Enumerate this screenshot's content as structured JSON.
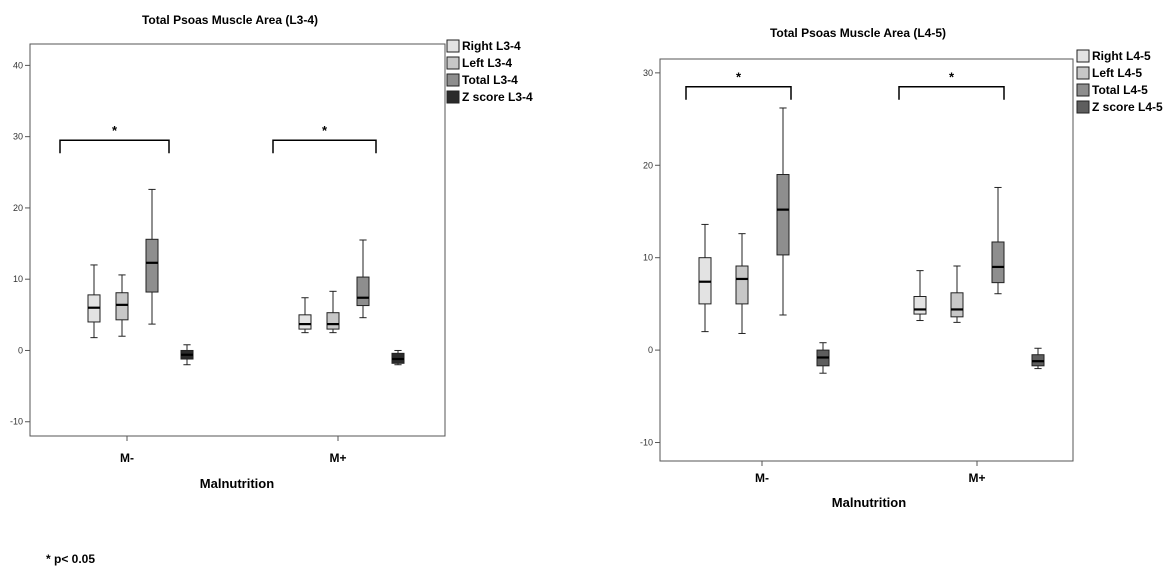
{
  "chart_data": [
    {
      "type": "box",
      "title": "Total Psoas Muscle Area (L3-4)",
      "xlabel": "Malnutrition",
      "ylabel": "",
      "categories": [
        "M-",
        "M+"
      ],
      "ylim": [
        -12,
        43
      ],
      "yticks": [
        "-10",
        "0",
        "10",
        "20",
        "30",
        "40"
      ],
      "legend_position": "right",
      "series": [
        {
          "name": "Right L3-4",
          "color": "#e3e3e3",
          "boxes": [
            {
              "min": 1.8,
              "q1": 4.0,
              "median": 6.0,
              "q3": 7.8,
              "max": 12.0
            },
            {
              "min": 2.5,
              "q1": 3.0,
              "median": 3.7,
              "q3": 5.0,
              "max": 7.4
            }
          ]
        },
        {
          "name": "Left L3-4",
          "color": "#c7c7c7",
          "boxes": [
            {
              "min": 2.0,
              "q1": 4.3,
              "median": 6.4,
              "q3": 8.1,
              "max": 10.6
            },
            {
              "min": 2.5,
              "q1": 3.0,
              "median": 3.7,
              "q3": 5.3,
              "max": 8.3
            }
          ]
        },
        {
          "name": "Total L3-4",
          "color": "#8e8e8e",
          "boxes": [
            {
              "min": 3.7,
              "q1": 8.2,
              "median": 12.3,
              "q3": 15.6,
              "max": 22.6
            },
            {
              "min": 4.6,
              "q1": 6.3,
              "median": 7.4,
              "q3": 10.3,
              "max": 15.5
            }
          ]
        },
        {
          "name": "Z score L3-4",
          "color": "#2b2b2b",
          "boxes": [
            {
              "min": -2.0,
              "q1": -1.2,
              "median": -0.6,
              "q3": 0.0,
              "max": 0.8
            },
            {
              "min": -2.0,
              "q1": -1.8,
              "median": -1.2,
              "q3": -0.4,
              "max": 0.0
            }
          ]
        }
      ],
      "significance": [
        {
          "category": "M-",
          "label": "*",
          "y": 29.5
        },
        {
          "category": "M+",
          "label": "*",
          "y": 29.5
        }
      ]
    },
    {
      "type": "box",
      "title": "Total Psoas Muscle Area (L4-5)",
      "xlabel": "Malnutrition",
      "ylabel": "",
      "categories": [
        "M-",
        "M+"
      ],
      "ylim": [
        -12,
        31.5
      ],
      "yticks": [
        "-10",
        "0",
        "10",
        "20",
        "30"
      ],
      "legend_position": "right",
      "series": [
        {
          "name": "Right L4-5",
          "color": "#e3e3e3",
          "boxes": [
            {
              "min": 2.0,
              "q1": 5.0,
              "median": 7.4,
              "q3": 10.0,
              "max": 13.6
            },
            {
              "min": 3.2,
              "q1": 3.9,
              "median": 4.4,
              "q3": 5.8,
              "max": 8.6
            }
          ]
        },
        {
          "name": "Left L4-5",
          "color": "#c7c7c7",
          "boxes": [
            {
              "min": 1.8,
              "q1": 5.0,
              "median": 7.7,
              "q3": 9.1,
              "max": 12.6
            },
            {
              "min": 3.0,
              "q1": 3.6,
              "median": 4.4,
              "q3": 6.2,
              "max": 9.1
            }
          ]
        },
        {
          "name": "Total L4-5",
          "color": "#8e8e8e",
          "boxes": [
            {
              "min": 3.8,
              "q1": 10.3,
              "median": 15.2,
              "q3": 19.0,
              "max": 26.2
            },
            {
              "min": 6.1,
              "q1": 7.3,
              "median": 9.0,
              "q3": 11.7,
              "max": 17.6
            }
          ]
        },
        {
          "name": "Z score L4-5",
          "color": "#5e5e5e",
          "boxes": [
            {
              "min": -2.5,
              "q1": -1.7,
              "median": -0.8,
              "q3": 0.0,
              "max": 0.8
            },
            {
              "min": -2.0,
              "q1": -1.7,
              "median": -1.2,
              "q3": -0.5,
              "max": 0.2
            }
          ]
        }
      ],
      "significance": [
        {
          "category": "M-",
          "label": "*",
          "y": 28.5
        },
        {
          "category": "M+",
          "label": "*",
          "y": 28.5
        }
      ]
    }
  ],
  "footnote": "* p< 0.05"
}
